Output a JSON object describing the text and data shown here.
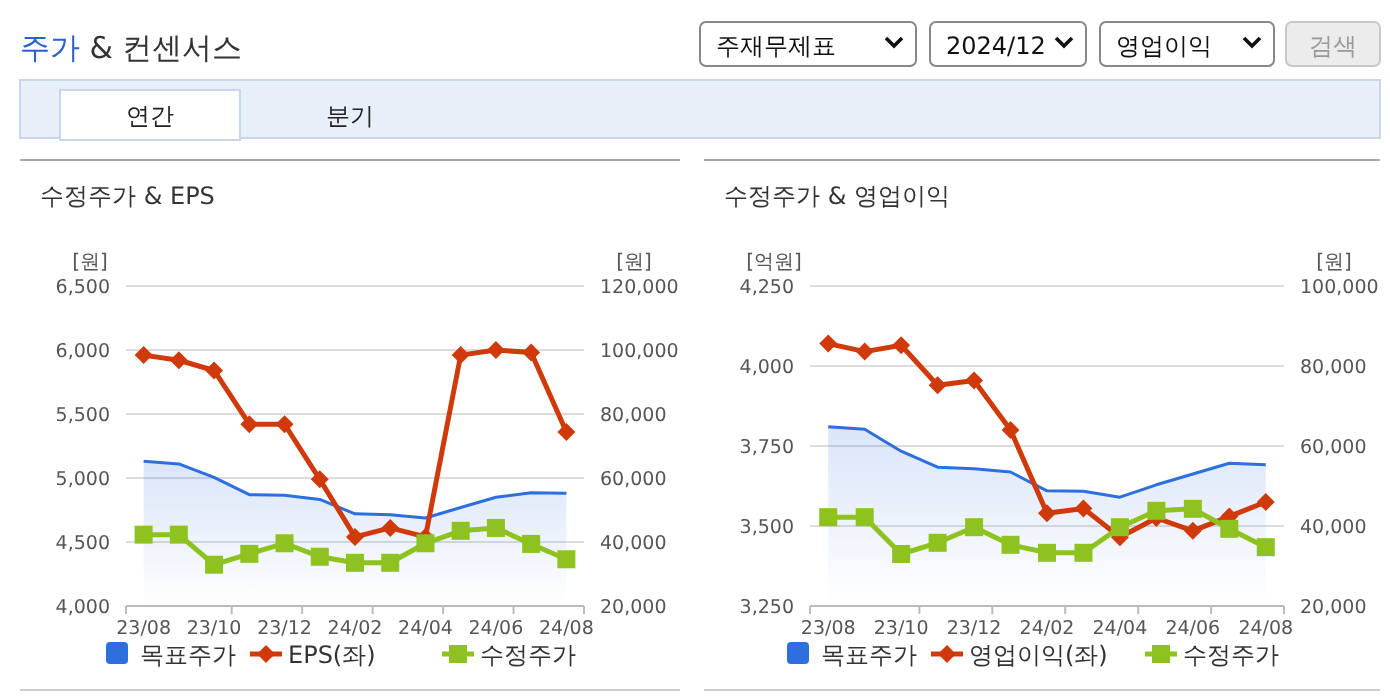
{
  "chart_data": [
    {
      "type": "other",
      "title": "주가 & 컨센서스",
      "annotations": [
        "주재무제표",
        "2024/12",
        "영업이익",
        "검색",
        "연간",
        "분기"
      ]
    },
    {
      "type": "line",
      "title": "수정주가 & EPS",
      "ylabel": "[원]",
      "y2label": "[원]",
      "categories": [
        "23/08",
        null,
        "23/10",
        null,
        "23/12",
        null,
        "24/02",
        null,
        "24/04",
        null,
        "24/06",
        null,
        "24/08"
      ],
      "ylim": [
        4000,
        6500
      ],
      "yticks": [
        {
          "value": 4000,
          "label": "4,000"
        },
        {
          "value": 4500,
          "label": "4,500"
        },
        {
          "value": 5000,
          "label": "5,000"
        },
        {
          "value": 5500,
          "label": "5,500"
        },
        {
          "value": 6000,
          "label": "6,000"
        },
        {
          "value": 6500,
          "label": "6,500"
        }
      ],
      "y2lim": [
        20000,
        120000
      ],
      "y2ticks": [
        {
          "value": 20000,
          "label": "20,000"
        },
        {
          "value": 40000,
          "label": "40,000"
        },
        {
          "value": 60000,
          "label": "60,000"
        },
        {
          "value": 80000,
          "label": "80,000"
        },
        {
          "value": 100000,
          "label": "100,000"
        },
        {
          "value": 120000,
          "label": "120,000"
        }
      ],
      "grid": "y",
      "legend": "bottom",
      "series": [
        {
          "name": "목표주가",
          "type": "area",
          "axis": "y2",
          "color": "#2d6fdc",
          "values": [
            65200,
            64400,
            60200,
            54800,
            54600,
            53300,
            48800,
            48500,
            47500,
            50800,
            54000,
            55400,
            55200
          ]
        },
        {
          "name": "EPS(좌)",
          "type": "line",
          "color": "#d03a0a",
          "marker": "diamond",
          "values": [
            5960,
            5920,
            5840,
            5420,
            5420,
            4990,
            4540,
            4610,
            4540,
            5960,
            6000,
            5980,
            5360
          ]
        },
        {
          "name": "수정주가",
          "type": "line",
          "axis": "y2",
          "color": "#8dc21f",
          "marker": "square",
          "values": [
            42300,
            42300,
            32900,
            36300,
            39600,
            35400,
            33500,
            33500,
            39600,
            43500,
            44400,
            39400,
            34600
          ]
        }
      ]
    },
    {
      "type": "line",
      "title": "수정주가 & 영업이익",
      "ylabel": "[억원]",
      "y2label": "[원]",
      "categories": [
        "23/08",
        null,
        "23/10",
        null,
        "23/12",
        null,
        "24/02",
        null,
        "24/04",
        null,
        "24/06",
        null,
        "24/08"
      ],
      "ylim": [
        3250,
        4250
      ],
      "yticks": [
        {
          "value": 3250,
          "label": "3,250"
        },
        {
          "value": 3500,
          "label": "3,500"
        },
        {
          "value": 3750,
          "label": "3,750"
        },
        {
          "value": 4000,
          "label": "4,000"
        },
        {
          "value": 4250,
          "label": "4,250"
        }
      ],
      "y2lim": [
        20000,
        100000
      ],
      "y2ticks": [
        {
          "value": 20000,
          "label": "20,000"
        },
        {
          "value": 40000,
          "label": "40,000"
        },
        {
          "value": 60000,
          "label": "60,000"
        },
        {
          "value": 80000,
          "label": "80,000"
        },
        {
          "value": 100000,
          "label": "100,000"
        }
      ],
      "grid": "y",
      "legend": "bottom",
      "series": [
        {
          "name": "목표주가",
          "type": "area",
          "axis": "y2",
          "color": "#2d6fdc",
          "values": [
            64800,
            64200,
            58700,
            54700,
            54300,
            53500,
            48800,
            48700,
            47200,
            50300,
            53000,
            55700,
            55300
          ]
        },
        {
          "name": "영업이익(좌)",
          "type": "line",
          "color": "#d03a0a",
          "marker": "diamond",
          "values": [
            4070,
            4045,
            4065,
            3940,
            3955,
            3800,
            3540,
            3555,
            3465,
            3525,
            3485,
            3530,
            3575
          ]
        },
        {
          "name": "수정주가",
          "type": "line",
          "axis": "y2",
          "color": "#8dc21f",
          "marker": "square",
          "values": [
            42200,
            42200,
            33000,
            35800,
            39700,
            35300,
            33300,
            33300,
            39700,
            43800,
            44300,
            39300,
            34700
          ]
        }
      ]
    }
  ]
}
